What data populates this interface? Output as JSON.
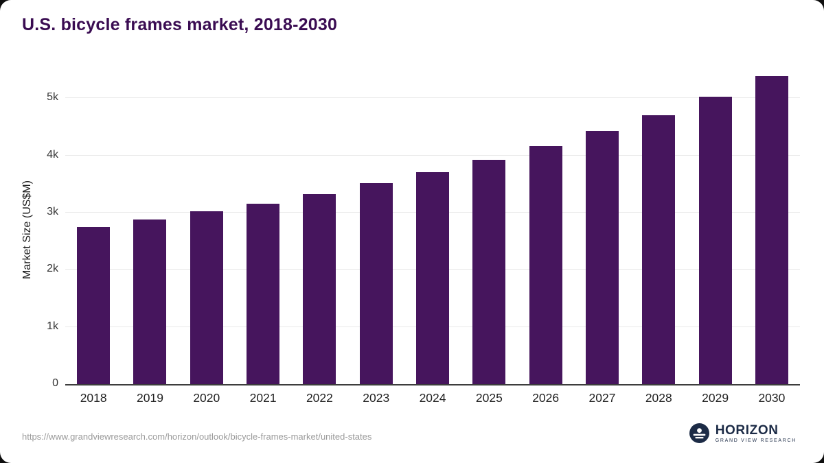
{
  "page": {
    "title": "U.S. bicycle frames market, 2018-2030",
    "source_url": "https://www.grandviewresearch.com/horizon/outlook/bicycle-frames-market/united-states"
  },
  "logo": {
    "name": "HORIZON",
    "subtitle": "GRAND VIEW RESEARCH",
    "icon": "horizon-sunrise-icon",
    "color": "#1c2b46"
  },
  "chart_data": {
    "type": "bar",
    "title": "U.S. bicycle frames market, 2018-2030",
    "categories": [
      "2018",
      "2019",
      "2020",
      "2021",
      "2022",
      "2023",
      "2024",
      "2025",
      "2026",
      "2027",
      "2028",
      "2029",
      "2030"
    ],
    "values": [
      2750,
      2880,
      3020,
      3160,
      3330,
      3520,
      3710,
      3930,
      4170,
      4430,
      4710,
      5030,
      5390
    ],
    "xlabel": "",
    "ylabel": "Market Size (US$M)",
    "ytick_values": [
      0,
      1000,
      2000,
      3000,
      4000,
      5000
    ],
    "ytick_labels": [
      "0",
      "1k",
      "2k",
      "3k",
      "4k",
      "5k"
    ],
    "ylim": [
      0,
      5400
    ],
    "grid": true,
    "legend": "none",
    "bar_color": "#46155d",
    "title_color": "#3a0c52",
    "axis_color": "#3d3d3d"
  }
}
